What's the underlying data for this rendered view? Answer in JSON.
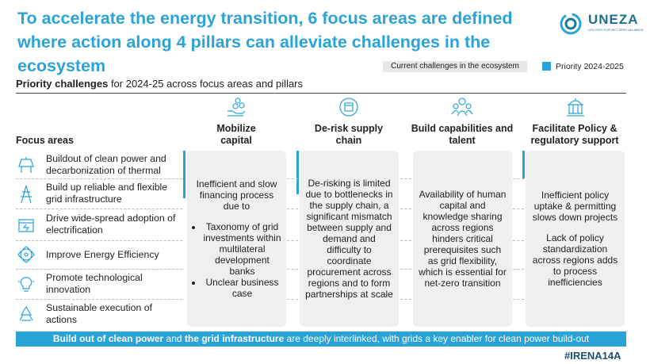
{
  "header": {
    "title": "To accelerate the energy transition, 6 focus areas are defined where action along 4 pillars can alleviate challenges in the ecosystem"
  },
  "logo": {
    "name": "UNEZA",
    "tagline": "UTILITIES FOR NET ZERO ALLIANCE"
  },
  "legend": {
    "challenges": "Current challenges in the ecosystem",
    "priority": "Priority 2024-2025"
  },
  "subtitle": {
    "bold": "Priority challenges",
    "rest": " for 2024-25 across focus areas and pillars"
  },
  "focus_label": "Focus areas",
  "focus_areas": [
    "Buildout of clean power and decarbonization of thermal",
    "Build up reliable and flexible grid infrastructure",
    "Drive wide-spread adoption of electrification",
    "Improve Energy Efficiency",
    "Promote technological innovation",
    "Sustainable execution of actions"
  ],
  "pillars": [
    {
      "name": "Mobilize capital",
      "paragraphs": [
        "Inefficient and slow financing process due to"
      ],
      "bullets": [
        "Taxonomy of grid investments within multilateral development banks",
        "Unclear business case"
      ]
    },
    {
      "name": "De-risk supply chain",
      "paragraphs": [
        "De-risking is limited due to bottlenecks in the supply chain, a significant mismatch between supply and demand and difficulty to coordinate procurement across regions and to form partnerships at scale"
      ],
      "bullets": []
    },
    {
      "name": "Build capabilities and talent",
      "paragraphs": [
        "Availability of human capital and knowledge sharing across regions hinders critical prerequisites such as grid flexibility, which is essential for net-zero transition"
      ],
      "bullets": []
    },
    {
      "name": "Facilitate Policy & regulatory support",
      "paragraphs": [
        "Inefficient policy uptake & permitting slows down projects",
        "Lack of policy standardization across regions adds to process inefficiencies"
      ],
      "bullets": []
    }
  ],
  "footer": {
    "parts": [
      {
        "text": "Build out of clean power",
        "bold": true
      },
      {
        "text": " and ",
        "bold": false
      },
      {
        "text": "the grid infrastructure",
        "bold": true
      },
      {
        "text": " are deeply interlinked, with grids a key enabler for clean power build-out",
        "bold": false
      }
    ],
    "hashtag": "#IRENA14A"
  }
}
